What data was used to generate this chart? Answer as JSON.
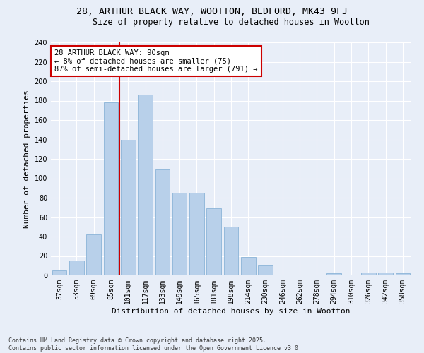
{
  "title_line1": "28, ARTHUR BLACK WAY, WOOTTON, BEDFORD, MK43 9FJ",
  "title_line2": "Size of property relative to detached houses in Wootton",
  "xlabel": "Distribution of detached houses by size in Wootton",
  "ylabel": "Number of detached properties",
  "categories": [
    "37sqm",
    "53sqm",
    "69sqm",
    "85sqm",
    "101sqm",
    "117sqm",
    "133sqm",
    "149sqm",
    "165sqm",
    "181sqm",
    "198sqm",
    "214sqm",
    "230sqm",
    "246sqm",
    "262sqm",
    "278sqm",
    "294sqm",
    "310sqm",
    "326sqm",
    "342sqm",
    "358sqm"
  ],
  "values": [
    5,
    15,
    42,
    178,
    140,
    186,
    109,
    85,
    85,
    69,
    50,
    19,
    10,
    1,
    0,
    0,
    2,
    0,
    3,
    3,
    2
  ],
  "bar_color": "#b8d0ea",
  "bar_edge_color": "#8ab4d8",
  "background_color": "#e8eef8",
  "grid_color": "#ffffff",
  "vline_color": "#cc0000",
  "annotation_text": "28 ARTHUR BLACK WAY: 90sqm\n← 8% of detached houses are smaller (75)\n87% of semi-detached houses are larger (791) →",
  "annotation_box_color": "#ffffff",
  "annotation_box_edge": "#cc0000",
  "ylim": [
    0,
    240
  ],
  "yticks": [
    0,
    20,
    40,
    60,
    80,
    100,
    120,
    140,
    160,
    180,
    200,
    220,
    240
  ],
  "footer_line1": "Contains HM Land Registry data © Crown copyright and database right 2025.",
  "footer_line2": "Contains public sector information licensed under the Open Government Licence v3.0.",
  "title_fontsize": 9.5,
  "subtitle_fontsize": 8.5,
  "axis_label_fontsize": 8,
  "tick_fontsize": 7,
  "annotation_fontsize": 7.5,
  "footer_fontsize": 6
}
